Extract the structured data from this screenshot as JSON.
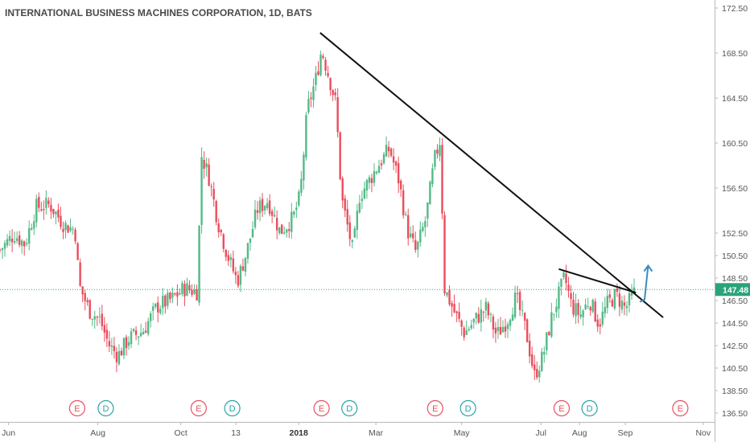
{
  "chart_data": {
    "type": "candlestick",
    "title": "INTERNATIONAL BUSINESS MACHINES CORPORATION, 1D, BATS",
    "ylim": [
      136.5,
      172.5
    ],
    "yticks": [
      "172.50",
      "168.50",
      "164.50",
      "160.50",
      "156.50",
      "152.50",
      "150.50",
      "148.50",
      "146.50",
      "144.50",
      "142.50",
      "140.50",
      "138.50",
      "136.50"
    ],
    "xticks": [
      {
        "label": "Jun",
        "t": 0.012,
        "bold": false
      },
      {
        "label": "Aug",
        "t": 0.137,
        "bold": false
      },
      {
        "label": "Oct",
        "t": 0.253,
        "bold": false
      },
      {
        "label": "13",
        "t": 0.33,
        "bold": false
      },
      {
        "label": "2018",
        "t": 0.418,
        "bold": true
      },
      {
        "label": "Mar",
        "t": 0.526,
        "bold": false
      },
      {
        "label": "May",
        "t": 0.646,
        "bold": false
      },
      {
        "label": "Jul",
        "t": 0.757,
        "bold": false
      },
      {
        "label": "Aug",
        "t": 0.811,
        "bold": false
      },
      {
        "label": "Sep",
        "t": 0.875,
        "bold": false
      },
      {
        "label": "Nov",
        "t": 0.984,
        "bold": false
      }
    ],
    "last_price": 147.48,
    "last_price_label": "147.48",
    "up_color": "#53b987",
    "down_color": "#eb4d5c",
    "events": [
      {
        "type": "E",
        "t": 0.108
      },
      {
        "type": "D",
        "t": 0.148
      },
      {
        "type": "E",
        "t": 0.278
      },
      {
        "type": "D",
        "t": 0.325
      },
      {
        "type": "E",
        "t": 0.45
      },
      {
        "type": "D",
        "t": 0.489
      },
      {
        "type": "E",
        "t": 0.609
      },
      {
        "type": "D",
        "t": 0.655
      },
      {
        "type": "E",
        "t": 0.786
      },
      {
        "type": "D",
        "t": 0.825
      },
      {
        "type": "E",
        "t": 0.952
      }
    ],
    "trendlines": [
      {
        "name": "long-downtrend",
        "from": {
          "t": 0.448,
          "price": 170.3
        },
        "to": {
          "t": 0.928,
          "price": 145.0
        }
      },
      {
        "name": "short-downtrend",
        "from": {
          "t": 0.782,
          "price": 149.3
        },
        "to": {
          "t": 0.89,
          "price": 147.2
        }
      }
    ],
    "arrow": {
      "from": {
        "t": 0.902,
        "price": 146.6
      },
      "to": {
        "t": 0.907,
        "price": 149.6
      },
      "color": "#3a8dbf"
    },
    "price_path": [
      {
        "t": 0.0,
        "c": 151.0
      },
      {
        "t": 0.02,
        "c": 152.4
      },
      {
        "t": 0.035,
        "c": 151.5
      },
      {
        "t": 0.05,
        "c": 154.8
      },
      {
        "t": 0.07,
        "c": 155.0
      },
      {
        "t": 0.09,
        "c": 153.2
      },
      {
        "t": 0.105,
        "c": 152.8
      },
      {
        "t": 0.111,
        "c": 147.8
      },
      {
        "t": 0.125,
        "c": 145.6
      },
      {
        "t": 0.14,
        "c": 144.8
      },
      {
        "t": 0.152,
        "c": 142.6
      },
      {
        "t": 0.165,
        "c": 141.6
      },
      {
        "t": 0.18,
        "c": 143.1
      },
      {
        "t": 0.2,
        "c": 143.8
      },
      {
        "t": 0.22,
        "c": 146.0
      },
      {
        "t": 0.24,
        "c": 146.6
      },
      {
        "t": 0.258,
        "c": 147.6
      },
      {
        "t": 0.276,
        "c": 147.3
      },
      {
        "t": 0.282,
        "c": 159.4
      },
      {
        "t": 0.292,
        "c": 157.6
      },
      {
        "t": 0.305,
        "c": 153.5
      },
      {
        "t": 0.318,
        "c": 150.6
      },
      {
        "t": 0.332,
        "c": 148.2
      },
      {
        "t": 0.345,
        "c": 150.8
      },
      {
        "t": 0.36,
        "c": 154.6
      },
      {
        "t": 0.375,
        "c": 155.4
      },
      {
        "t": 0.392,
        "c": 152.6
      },
      {
        "t": 0.41,
        "c": 153.8
      },
      {
        "t": 0.42,
        "c": 155.8
      },
      {
        "t": 0.43,
        "c": 163.5
      },
      {
        "t": 0.442,
        "c": 166.2
      },
      {
        "t": 0.45,
        "c": 168.8
      },
      {
        "t": 0.462,
        "c": 166.0
      },
      {
        "t": 0.47,
        "c": 164.0
      },
      {
        "t": 0.478,
        "c": 155.6
      },
      {
        "t": 0.486,
        "c": 153.2
      },
      {
        "t": 0.494,
        "c": 150.8
      },
      {
        "t": 0.503,
        "c": 155.8
      },
      {
        "t": 0.515,
        "c": 157.0
      },
      {
        "t": 0.53,
        "c": 158.6
      },
      {
        "t": 0.545,
        "c": 160.0
      },
      {
        "t": 0.558,
        "c": 157.2
      },
      {
        "t": 0.57,
        "c": 152.8
      },
      {
        "t": 0.582,
        "c": 150.8
      },
      {
        "t": 0.596,
        "c": 153.8
      },
      {
        "t": 0.608,
        "c": 159.0
      },
      {
        "t": 0.616,
        "c": 160.8
      },
      {
        "t": 0.622,
        "c": 147.6
      },
      {
        "t": 0.635,
        "c": 145.6
      },
      {
        "t": 0.65,
        "c": 143.6
      },
      {
        "t": 0.665,
        "c": 144.8
      },
      {
        "t": 0.68,
        "c": 145.8
      },
      {
        "t": 0.695,
        "c": 143.4
      },
      {
        "t": 0.71,
        "c": 144.8
      },
      {
        "t": 0.722,
        "c": 146.8
      },
      {
        "t": 0.736,
        "c": 143.8
      },
      {
        "t": 0.748,
        "c": 139.8
      },
      {
        "t": 0.76,
        "c": 141.6
      },
      {
        "t": 0.772,
        "c": 145.0
      },
      {
        "t": 0.782,
        "c": 147.0
      },
      {
        "t": 0.79,
        "c": 148.6
      },
      {
        "t": 0.8,
        "c": 146.0
      },
      {
        "t": 0.812,
        "c": 145.2
      },
      {
        "t": 0.825,
        "c": 146.6
      },
      {
        "t": 0.838,
        "c": 144.4
      },
      {
        "t": 0.85,
        "c": 146.2
      },
      {
        "t": 0.862,
        "c": 147.0
      },
      {
        "t": 0.875,
        "c": 145.8
      },
      {
        "t": 0.89,
        "c": 147.48
      }
    ]
  }
}
